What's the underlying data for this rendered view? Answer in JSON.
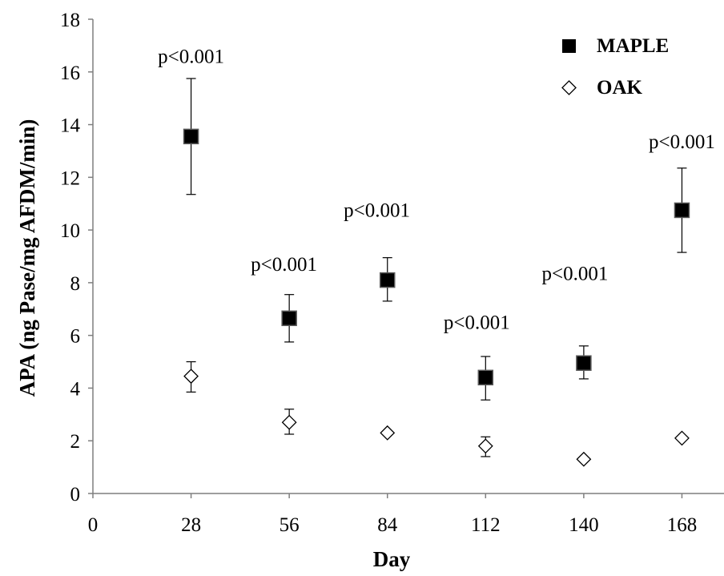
{
  "chart_data": {
    "type": "scatter",
    "xlabel": "Day",
    "ylabel": "APA (ng Pase/mg AFDM/min)",
    "xlim": [
      0,
      180
    ],
    "ylim": [
      0,
      18
    ],
    "xticks": [
      0,
      28,
      56,
      84,
      112,
      140,
      168
    ],
    "yticks": [
      0,
      2,
      4,
      6,
      8,
      10,
      12,
      14,
      16,
      18
    ],
    "grid": false,
    "legend_position": "top-right",
    "series": [
      {
        "name": "MAPLE",
        "marker": "filled-square",
        "color": "#000000",
        "x": [
          28,
          56,
          84,
          112,
          140,
          168
        ],
        "y": [
          13.55,
          6.65,
          8.1,
          4.4,
          4.95,
          10.75
        ],
        "err_low": [
          11.35,
          5.75,
          7.3,
          3.55,
          4.35,
          9.15
        ],
        "err_high": [
          15.75,
          7.55,
          8.95,
          5.2,
          5.6,
          12.35
        ]
      },
      {
        "name": "OAK",
        "marker": "open-diamond",
        "color": "#000000",
        "x": [
          28,
          56,
          84,
          112,
          140,
          168
        ],
        "y": [
          4.45,
          2.7,
          2.3,
          1.8,
          1.3,
          2.1
        ],
        "err_low": [
          3.85,
          2.25,
          2.3,
          1.4,
          1.3,
          2.1
        ],
        "err_high": [
          5.0,
          3.2,
          2.3,
          2.15,
          1.3,
          2.1
        ]
      }
    ],
    "annotations": [
      {
        "text": "p<0.001",
        "x": 28,
        "y": 16.35
      },
      {
        "text": "p<0.001",
        "x": 54.5,
        "y": 8.45
      },
      {
        "text": "p<0.001",
        "x": 81,
        "y": 10.5
      },
      {
        "text": "p<0.001",
        "x": 109.5,
        "y": 6.25
      },
      {
        "text": "p<0.001",
        "x": 137.5,
        "y": 8.1
      },
      {
        "text": "p<0.001",
        "x": 168,
        "y": 13.1
      }
    ]
  }
}
